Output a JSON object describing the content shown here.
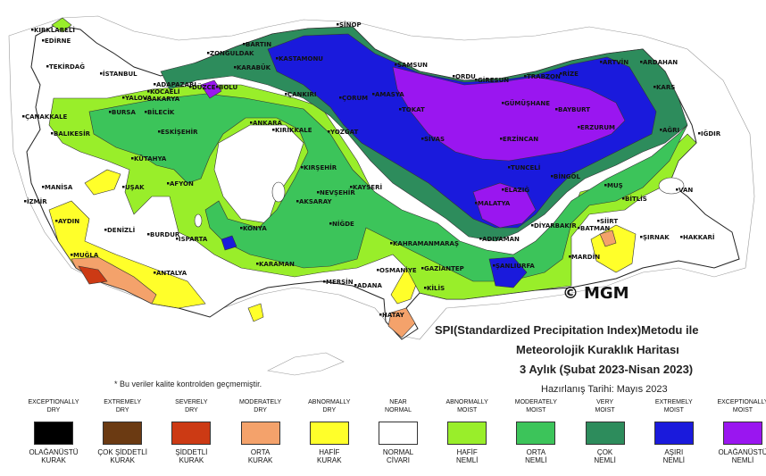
{
  "map": {
    "countries_background": "#ffffff",
    "cities": [
      "KIRKLARELİ",
      "EDİRNE",
      "TEKİRDAĞ",
      "İSTANBUL",
      "ÇANAKKALE",
      "BALIKESİR",
      "BURSA",
      "YALOVA",
      "KOCAELİ",
      "SAKARYA",
      "ADAPAZARI",
      "DÜZCE",
      "BOLU",
      "BARTIN",
      "ZONGULDAK",
      "KARABÜK",
      "KASTAMONU",
      "SİNOP",
      "SAMSUN",
      "ORDU",
      "GİRESUN",
      "TRABZON",
      "RİZE",
      "ARTVİN",
      "ARDAHAN",
      "KARS",
      "IĞDIR",
      "AĞRI",
      "ERZURUM",
      "BAYBURT",
      "GÜMÜŞHANE",
      "ERZİNCAN",
      "TUNCELİ",
      "BİNGÖL",
      "MUŞ",
      "BİTLİS",
      "VAN",
      "HAKKARİ",
      "ŞIRNAK",
      "SİİRT",
      "BATMAN",
      "MARDİN",
      "DİYARBAKIR",
      "ŞANLIURFA",
      "ADIYAMAN",
      "MALATYA",
      "ELAZIĞ",
      "GAZİANTEP",
      "KİLİS",
      "OSMANİYE",
      "ADANA",
      "MERSİN",
      "HATAY",
      "KAHRAMANMARAŞ",
      "NİĞDE",
      "AKSARAY",
      "NEVŞEHİR",
      "KAYSERİ",
      "KIRŞEHİR",
      "YOZGAT",
      "SİVAS",
      "TOKAT",
      "AMASYA",
      "ÇORUM",
      "ÇANKIRI",
      "KIRIKKALE",
      "ANKARA",
      "ESKİŞEHİR",
      "BİLECİK",
      "KÜTAHYA",
      "AFYON",
      "UŞAK",
      "MANİSA",
      "İZMİR",
      "AYDIN",
      "MUĞLA",
      "DENİZLİ",
      "BURDUR",
      "ISPARTA",
      "ANTALYA",
      "KONYA",
      "KARAMAN"
    ]
  },
  "title": {
    "line1": "SPI(Standardized Precipitation Index)Metodu ile",
    "line2": "Meteorolojik Kuraklık Haritası",
    "line3": "3 Aylık (Şubat 2023-Nisan 2023)",
    "date": "Hazırlanış Tarihi: Mayıs 2023"
  },
  "logo": {
    "symbol": "©",
    "text": "MGM"
  },
  "note": "* Bu veriler kalite kontrolden geçmemiştir.",
  "legend": [
    {
      "en": [
        "EXCEPTIONALLY",
        "DRY"
      ],
      "tr": [
        "OLAĞANÜSTÜ",
        "KURAK"
      ],
      "color": "#000000"
    },
    {
      "en": [
        "EXTREMELY",
        "DRY"
      ],
      "tr": [
        "ÇOK ŞİDDETLİ",
        "KURAK"
      ],
      "color": "#6b3a12"
    },
    {
      "en": [
        "SEVERELY",
        "DRY"
      ],
      "tr": [
        "ŞİDDETLİ",
        "KURAK"
      ],
      "color": "#cc3a14"
    },
    {
      "en": [
        "MODERATELY",
        "DRY"
      ],
      "tr": [
        "ORTA",
        "KURAK"
      ],
      "color": "#f4a26b"
    },
    {
      "en": [
        "ABNORMALLY",
        "DRY"
      ],
      "tr": [
        "HAFİF",
        "KURAK"
      ],
      "color": "#ffff2a"
    },
    {
      "en": [
        "NEAR",
        "NORMAL"
      ],
      "tr": [
        "NORMAL",
        "CİVARI"
      ],
      "color": "#ffffff"
    },
    {
      "en": [
        "ABNORMALLY",
        "MOIST"
      ],
      "tr": [
        "HAFİF",
        "NEMLİ"
      ],
      "color": "#99ee2a"
    },
    {
      "en": [
        "MODERATELY",
        "MOIST"
      ],
      "tr": [
        "ORTA",
        "NEMLİ"
      ],
      "color": "#3cc45a"
    },
    {
      "en": [
        "VERY",
        "MOIST"
      ],
      "tr": [
        "ÇOK",
        "NEMLİ"
      ],
      "color": "#2d8c5c"
    },
    {
      "en": [
        "EXTREMELY",
        "MOIST"
      ],
      "tr": [
        "AŞIRI",
        "NEMLİ"
      ],
      "color": "#1a1adc"
    },
    {
      "en": [
        "EXCEPTIONALLY",
        "MOIST"
      ],
      "tr": [
        "OLAĞANÜSTÜ",
        "NEMLİ"
      ],
      "color": "#9a16f0"
    }
  ]
}
